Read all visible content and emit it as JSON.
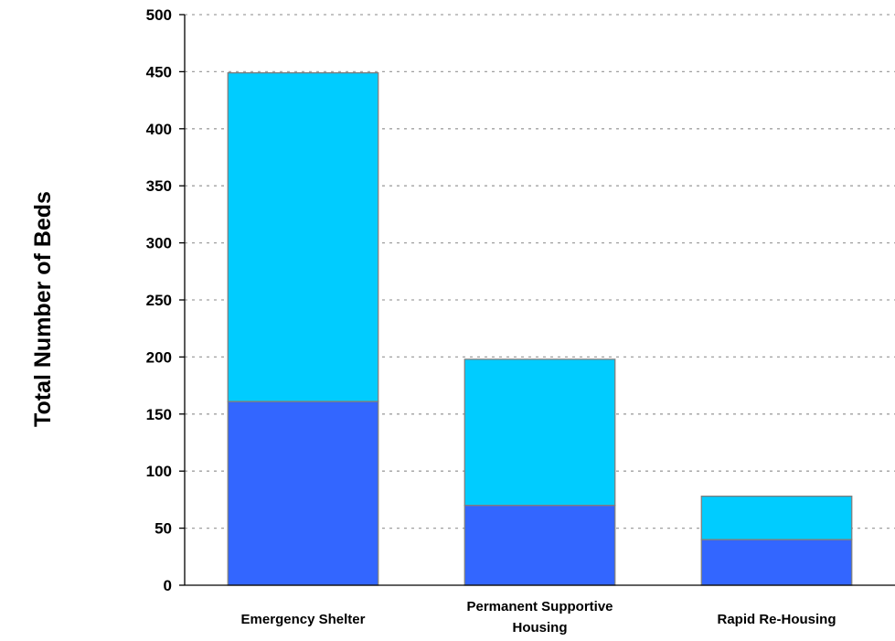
{
  "chart_data": {
    "type": "bar",
    "stacked": true,
    "categories": [
      "Emergency Shelter",
      "Permanent Supportive Housing",
      "Rapid Re-Housing"
    ],
    "series": [
      {
        "values": [
          161,
          70,
          40
        ],
        "color": "#3366ff"
      },
      {
        "values": [
          288,
          128,
          38
        ],
        "color": "#00ccff"
      }
    ],
    "ylabel": "Total Number of Beds",
    "xlabel": "",
    "ylim": [
      0,
      500
    ],
    "yticks": [
      0,
      50,
      100,
      150,
      200,
      250,
      300,
      350,
      400,
      450,
      500
    ],
    "grid": true,
    "legend": "none"
  }
}
